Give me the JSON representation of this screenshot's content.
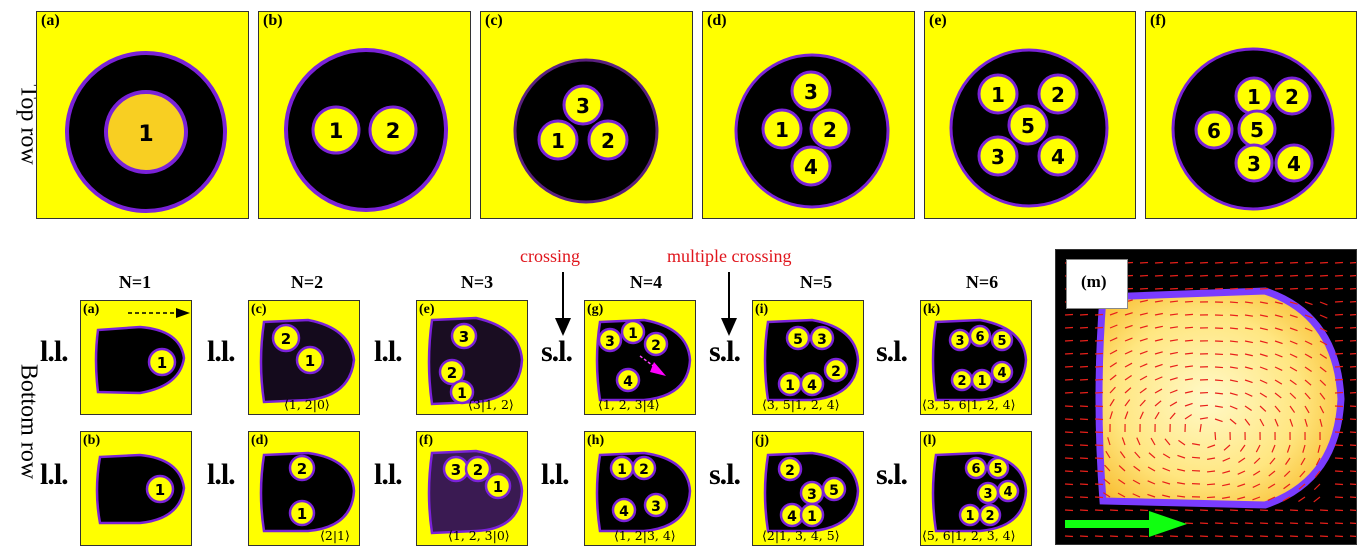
{
  "row_labels": {
    "top": "Top row",
    "bottom": "Bottom row"
  },
  "top_panels": [
    {
      "tag": "(a)",
      "nums": [
        "1"
      ]
    },
    {
      "tag": "(b)",
      "nums": [
        "1",
        "2"
      ]
    },
    {
      "tag": "(c)",
      "nums": [
        "3",
        "1",
        "2"
      ]
    },
    {
      "tag": "(d)",
      "nums": [
        "3",
        "1",
        "2",
        "4"
      ]
    },
    {
      "tag": "(e)",
      "nums": [
        "1",
        "2",
        "5",
        "3",
        "4"
      ]
    },
    {
      "tag": "(f)",
      "nums": [
        "1",
        "2",
        "6",
        "5",
        "3",
        "4"
      ]
    }
  ],
  "columns": [
    "N=1",
    "N=2",
    "N=3",
    "N=4",
    "N=5",
    "N=6"
  ],
  "annotations": {
    "crossing": "crossing",
    "multiple_crossing": "multiple crossing"
  },
  "bottom_panels": [
    {
      "tag": "(a)",
      "side": "l.l.",
      "bracket": "",
      "nums": [
        "1"
      ]
    },
    {
      "tag": "(b)",
      "side": "l.l.",
      "bracket": "",
      "nums": [
        "1"
      ]
    },
    {
      "tag": "(c)",
      "side": "l.l.",
      "bracket": "⟨1, 2|0⟩",
      "nums": [
        "2",
        "1"
      ]
    },
    {
      "tag": "(d)",
      "side": "l.l.",
      "bracket": "⟨2|1⟩",
      "nums": [
        "2",
        "1"
      ]
    },
    {
      "tag": "(e)",
      "side": "l.l.",
      "bracket": "⟨3|1, 2⟩",
      "nums": [
        "3",
        "2",
        "1"
      ]
    },
    {
      "tag": "(f)",
      "side": "l.l.",
      "bracket": "⟨1, 2, 3|0⟩",
      "nums": [
        "3",
        "2",
        "1"
      ]
    },
    {
      "tag": "(g)",
      "side": "s.l.",
      "bracket": "⟨1, 2, 3|4⟩",
      "nums": [
        "3",
        "1",
        "2",
        "4"
      ]
    },
    {
      "tag": "(h)",
      "side": "l.l.",
      "bracket": "⟨1, 2|3, 4⟩",
      "nums": [
        "1",
        "2",
        "4",
        "3"
      ]
    },
    {
      "tag": "(i)",
      "side": "s.l.",
      "bracket": "⟨3, 5|1, 2, 4⟩",
      "nums": [
        "5",
        "3",
        "2",
        "1",
        "4"
      ]
    },
    {
      "tag": "(j)",
      "side": "s.l.",
      "bracket": "⟨2|1, 3, 4, 5⟩",
      "nums": [
        "2",
        "3",
        "5",
        "4",
        "1"
      ]
    },
    {
      "tag": "(k)",
      "side": "s.l.",
      "bracket": "⟨3, 5, 6|1, 2, 4⟩",
      "nums": [
        "3",
        "6",
        "5",
        "2",
        "1",
        "4"
      ]
    },
    {
      "tag": "(l)",
      "side": "s.l.",
      "bracket": "⟨5, 6|1, 2, 3, 4⟩",
      "nums": [
        "6",
        "5",
        "3",
        "4",
        "1",
        "2"
      ]
    }
  ],
  "panel_m": {
    "tag": "(m)"
  },
  "colors": {
    "yellow": "#ffff00",
    "dark": "#000000",
    "rim": "#8a2be2",
    "drop": "#f5d21a",
    "annotation": "#e0151c",
    "green_arrow": "#10ff10",
    "magenta_arrow": "#ff00ff"
  }
}
